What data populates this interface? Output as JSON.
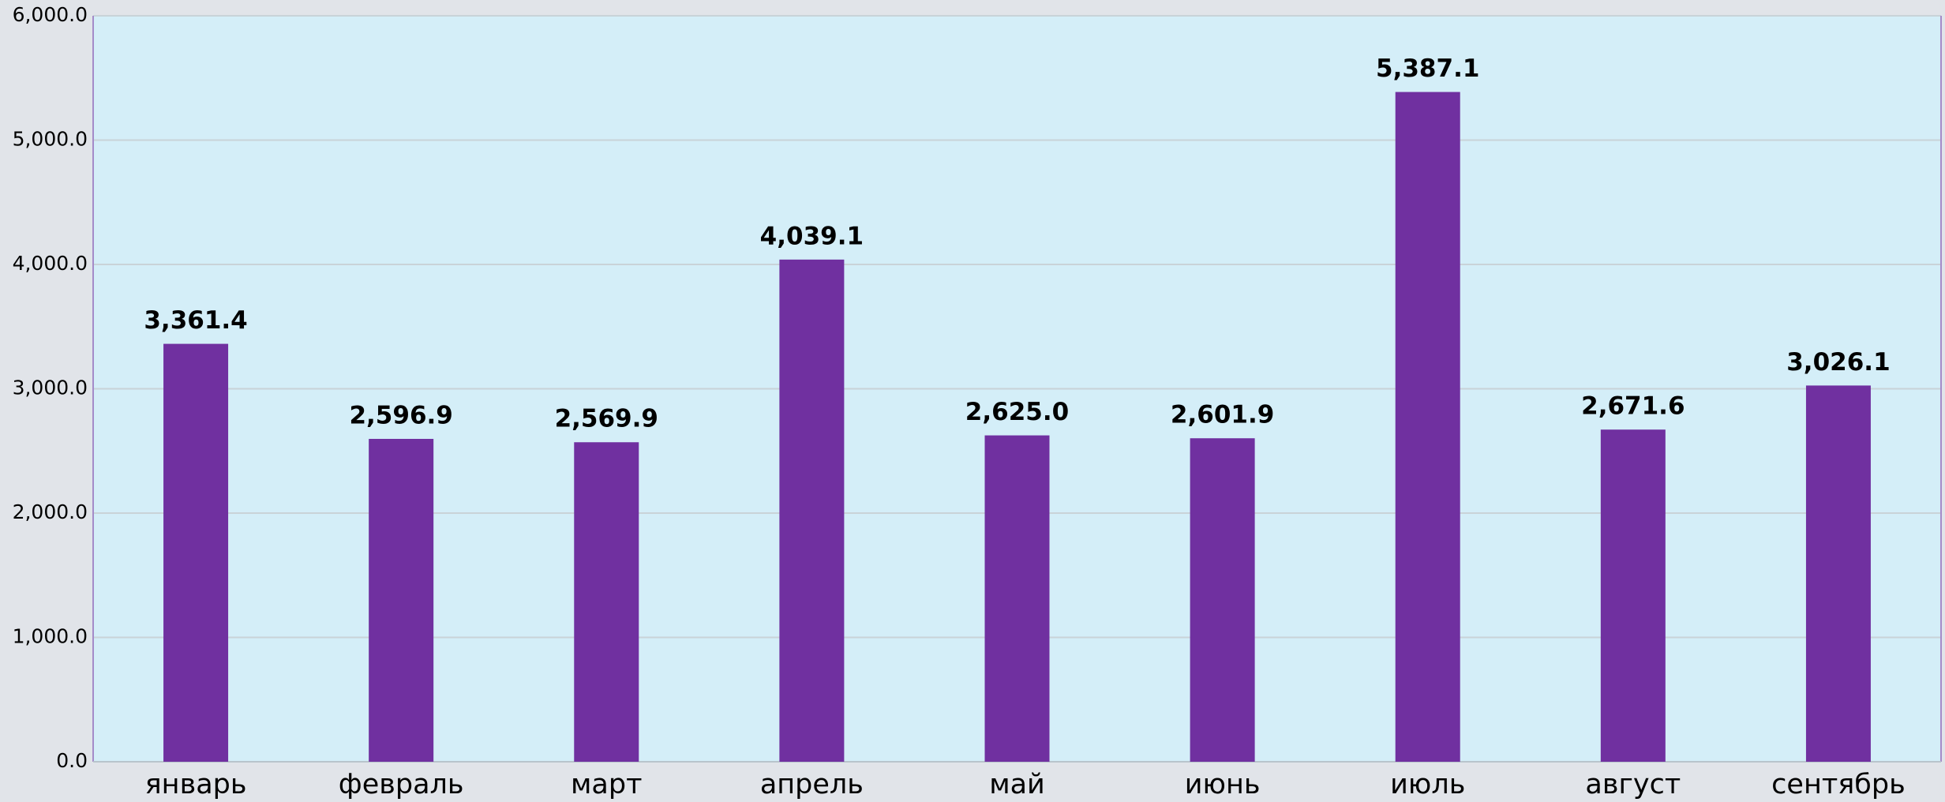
{
  "chart_data": {
    "type": "bar",
    "categories": [
      "январь",
      "февраль",
      "март",
      "апрель",
      "май",
      "июнь",
      "июль",
      "август",
      "сентябрь"
    ],
    "values": [
      3361.4,
      2596.9,
      2569.9,
      4039.1,
      2625.0,
      2601.9,
      5387.1,
      2671.6,
      3026.1
    ],
    "value_labels": [
      "3,361.4",
      "2,596.9",
      "2,569.9",
      "4,039.1",
      "2,625.0",
      "2,601.9",
      "5,387.1",
      "2,671.6",
      "3,026.1"
    ],
    "color": "#7030a0",
    "ylim": [
      0,
      6000
    ],
    "yticks": [
      {
        "value": 0,
        "label": "0.0"
      },
      {
        "value": 1000,
        "label": "1,000.0"
      },
      {
        "value": 2000,
        "label": "2,000.0"
      },
      {
        "value": 3000,
        "label": "3,000.0"
      },
      {
        "value": 4000,
        "label": "4,000.0"
      },
      {
        "value": 5000,
        "label": "5,000.0"
      },
      {
        "value": 6000,
        "label": "6,000.0"
      }
    ],
    "grid": true
  }
}
